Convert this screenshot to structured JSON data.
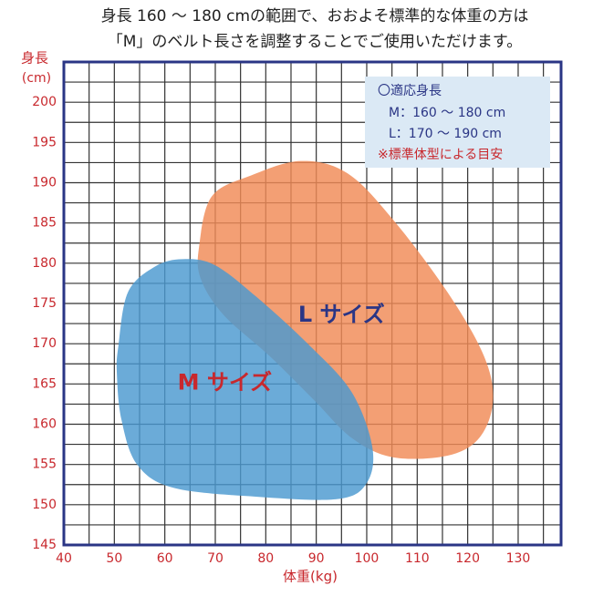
{
  "chart_data": {
    "type": "region",
    "header": [
      "身長 160 ～ 180 cmの範囲で、おおよそ標準的な体重の方は",
      "「M」のベルト長さを調整することでご使用いただけます。"
    ],
    "y_label": [
      "身長",
      "(cm)"
    ],
    "x_label": "体重(kg)",
    "xlim": [
      40,
      138.5
    ],
    "ylim": [
      145,
      205
    ],
    "xticks": [
      40,
      50,
      60,
      70,
      80,
      90,
      100,
      110,
      120,
      130
    ],
    "yticks": [
      145,
      150,
      155,
      160,
      165,
      170,
      175,
      180,
      185,
      190,
      195,
      200
    ],
    "minor_xticks": [
      45,
      55,
      65,
      75,
      85,
      95,
      105,
      115,
      125,
      135
    ],
    "minor_yticks": [
      147.5,
      152.5,
      157.5,
      162.5,
      167.5,
      172.5,
      177.5,
      182.5,
      187.5,
      192.5,
      197.5,
      202.5
    ],
    "grid": true,
    "regions": [
      {
        "name": "L サイズ",
        "color": "#f08a55",
        "label_color": "#2a3585",
        "x": [
          66.8,
          69.3,
          77.1,
          87.0,
          96.1,
          105.1,
          116.0,
          123.2,
          125.0,
          122.3,
          116.0,
          105.1,
          97.0,
          89.7,
          80.7,
          71.6,
          67.1
        ],
        "y": [
          182.1,
          188.3,
          190.9,
          192.7,
          191.2,
          185.5,
          176.4,
          168.5,
          162.9,
          158.3,
          156.1,
          155.9,
          158.3,
          162.9,
          168.5,
          173.6,
          178.1
        ]
      },
      {
        "name": "M サイズ",
        "color": "#4a98d0",
        "label_color": "#c8282d",
        "x": [
          50.8,
          52.7,
          58.1,
          63.5,
          69.8,
          78.0,
          88.8,
          97.0,
          101.1,
          100.0,
          94.2,
          78.0,
          61.7,
          54.5,
          51.4,
          50.5
        ],
        "y": [
          169.7,
          176.4,
          179.6,
          180.5,
          179.8,
          175.9,
          169.7,
          164.0,
          157.2,
          152.7,
          150.7,
          151.0,
          152.1,
          155.0,
          160.6,
          166.3
        ]
      }
    ],
    "legend": [
      "〇適応身長",
      "M：160 ～ 180 cm",
      "L：170 ～ 190 cm",
      "※標準体型による目安"
    ]
  }
}
